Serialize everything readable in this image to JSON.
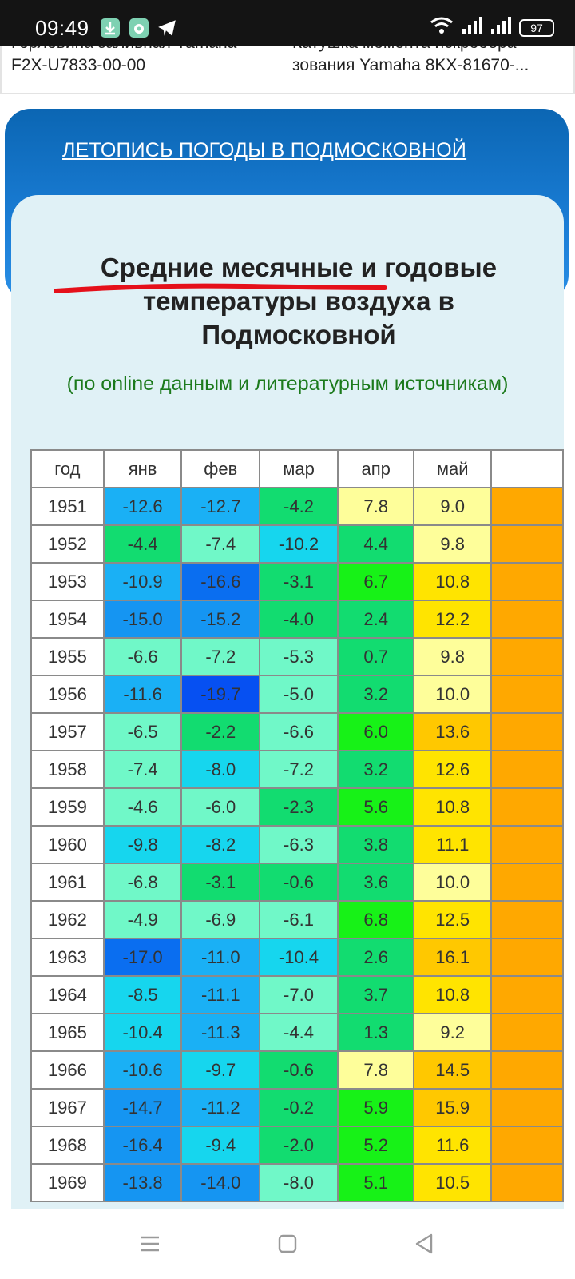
{
  "status_bar": {
    "time": "09:49",
    "battery": "97"
  },
  "ads": {
    "left_line1": "Горловина заливная Yamaha",
    "left_line2": "F2X-U7833-00-00",
    "right_line1": "Катушка момента искрообра",
    "right_line2": "зования Yamaha 8KX-81670-..."
  },
  "banner": {
    "link": "ЛЕТОПИСЬ ПОГОДЫ В ПОДМОСКОВНОЙ"
  },
  "card": {
    "title_line1": "Средние месячные и годовые",
    "title_line2": "температуры воздуха в",
    "title_line3": "Подмосковной",
    "subtitle": "(по online данным и литературным источникам)"
  },
  "table": {
    "headers": [
      "год",
      "янв",
      "фев",
      "мар",
      "апр",
      "май"
    ],
    "rows": [
      [
        "1951",
        "-12.6",
        "-12.7",
        "-4.2",
        "7.8",
        "9.0"
      ],
      [
        "1952",
        "-4.4",
        "-7.4",
        "-10.2",
        "4.4",
        "9.8"
      ],
      [
        "1953",
        "-10.9",
        "-16.6",
        "-3.1",
        "6.7",
        "10.8"
      ],
      [
        "1954",
        "-15.0",
        "-15.2",
        "-4.0",
        "2.4",
        "12.2"
      ],
      [
        "1955",
        "-6.6",
        "-7.2",
        "-5.3",
        "0.7",
        "9.8"
      ],
      [
        "1956",
        "-11.6",
        "-19.7",
        "-5.0",
        "3.2",
        "10.0"
      ],
      [
        "1957",
        "-6.5",
        "-2.2",
        "-6.6",
        "6.0",
        "13.6"
      ],
      [
        "1958",
        "-7.4",
        "-8.0",
        "-7.2",
        "3.2",
        "12.6"
      ],
      [
        "1959",
        "-4.6",
        "-6.0",
        "-2.3",
        "5.6",
        "10.8"
      ],
      [
        "1960",
        "-9.8",
        "-8.2",
        "-6.3",
        "3.8",
        "11.1"
      ],
      [
        "1961",
        "-6.8",
        "-3.1",
        "-0.6",
        "3.6",
        "10.0"
      ],
      [
        "1962",
        "-4.9",
        "-6.9",
        "-6.1",
        "6.8",
        "12.5"
      ],
      [
        "1963",
        "-17.0",
        "-11.0",
        "-10.4",
        "2.6",
        "16.1"
      ],
      [
        "1964",
        "-8.5",
        "-11.1",
        "-7.0",
        "3.7",
        "10.8"
      ],
      [
        "1965",
        "-10.4",
        "-11.3",
        "-4.4",
        "1.3",
        "9.2"
      ],
      [
        "1966",
        "-10.6",
        "-9.7",
        "-0.6",
        "7.8",
        "14.5"
      ],
      [
        "1967",
        "-14.7",
        "-11.2",
        "-0.2",
        "5.9",
        "15.9"
      ],
      [
        "1968",
        "-16.4",
        "-9.4",
        "-2.0",
        "5.2",
        "11.6"
      ],
      [
        "1969",
        "-13.8",
        "-14.0",
        "-8.0",
        "5.1",
        "10.5"
      ]
    ],
    "cell_colors": [
      [
        "#1ab0f5",
        "#1ab0f5",
        "#12dc70",
        "#fefe9a",
        "#fefe9a",
        "#ffa800"
      ],
      [
        "#12dc70",
        "#70f8c8",
        "#16d6ee",
        "#12dc70",
        "#fefe9a",
        "#ffa800"
      ],
      [
        "#1ab0f5",
        "#0a6ef0",
        "#12dc70",
        "#17f217",
        "#ffe400",
        "#ffa800"
      ],
      [
        "#1595f2",
        "#1595f2",
        "#12dc70",
        "#12dc70",
        "#ffe400",
        "#ffa800"
      ],
      [
        "#70f8c8",
        "#70f8c8",
        "#70f8c8",
        "#12dc70",
        "#fefe9a",
        "#ffa800"
      ],
      [
        "#1ab0f5",
        "#0650f2",
        "#70f8c8",
        "#12dc70",
        "#fefe9a",
        "#ffa800"
      ],
      [
        "#70f8c8",
        "#12dc70",
        "#70f8c8",
        "#17f217",
        "#ffc800",
        "#ffa800"
      ],
      [
        "#70f8c8",
        "#16d6ee",
        "#70f8c8",
        "#12dc70",
        "#ffe400",
        "#ffa800"
      ],
      [
        "#70f8c8",
        "#70f8c8",
        "#12dc70",
        "#17f217",
        "#ffe400",
        "#ffa800"
      ],
      [
        "#16d6ee",
        "#16d6ee",
        "#70f8c8",
        "#12dc70",
        "#ffe400",
        "#ffa800"
      ],
      [
        "#70f8c8",
        "#12dc70",
        "#12dc70",
        "#12dc70",
        "#fefe9a",
        "#ffa800"
      ],
      [
        "#70f8c8",
        "#70f8c8",
        "#70f8c8",
        "#17f217",
        "#ffe400",
        "#ffa800"
      ],
      [
        "#0a6ef0",
        "#1ab0f5",
        "#16d6ee",
        "#12dc70",
        "#ffc800",
        "#ffa800"
      ],
      [
        "#16d6ee",
        "#1ab0f5",
        "#70f8c8",
        "#12dc70",
        "#ffe400",
        "#ffa800"
      ],
      [
        "#16d6ee",
        "#1ab0f5",
        "#70f8c8",
        "#12dc70",
        "#fefe9a",
        "#ffa800"
      ],
      [
        "#1ab0f5",
        "#16d6ee",
        "#12dc70",
        "#fefe9a",
        "#ffc800",
        "#ffa800"
      ],
      [
        "#1595f2",
        "#1ab0f5",
        "#12dc70",
        "#17f217",
        "#ffc800",
        "#ffa800"
      ],
      [
        "#1595f2",
        "#16d6ee",
        "#12dc70",
        "#17f217",
        "#ffe400",
        "#ffa800"
      ],
      [
        "#1595f2",
        "#1595f2",
        "#70f8c8",
        "#17f217",
        "#ffe400",
        "#ffa800"
      ]
    ]
  },
  "colors": {
    "banner": "#0b66b3",
    "card": "#e0f1f6",
    "subtitle": "#1c7a1c",
    "underline": "#e5101a"
  }
}
